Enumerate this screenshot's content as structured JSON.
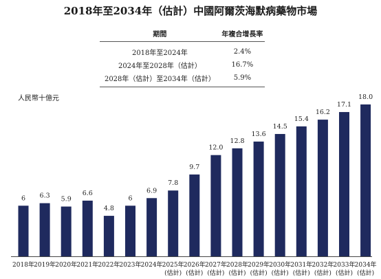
{
  "title": "2018年至2034年（估計）中國阿爾茨海默病藥物市場",
  "cagr_table": {
    "headers": [
      "期間",
      "年複合增長率"
    ],
    "rows": [
      [
        "2018年至2024年",
        "2.4%"
      ],
      [
        "2024年至2028年（估計）",
        "16.7%"
      ],
      [
        "2028年（估計）至2034年（估計）",
        "5.9%"
      ]
    ]
  },
  "chart_data": {
    "type": "bar",
    "title": "2018年至2034年（估計）中國阿爾茨海默病藥物市場",
    "ylabel": "人民幣十億元",
    "xlabel": "",
    "categories": [
      "2018年",
      "2019年",
      "2020年",
      "2021年",
      "2022年",
      "2023年",
      "2024年",
      "2025年\n(估計)",
      "2026年\n(估計)",
      "2027年\n(估計)",
      "2028年\n(估計)",
      "2029年\n(估計)",
      "2030年\n(估計)",
      "2031年\n(估計)",
      "2032年\n(估計)",
      "2033年\n(估計)",
      "2034年\n(估計)"
    ],
    "values": [
      6,
      6.3,
      5.9,
      6.6,
      4.8,
      6,
      6.9,
      7.8,
      9.7,
      12.0,
      12.8,
      13.6,
      14.5,
      15.4,
      16.2,
      17.1,
      18.0
    ],
    "value_labels": [
      "6",
      "6.3",
      "5.9",
      "6.6",
      "4.8",
      "6",
      "6.9",
      "7.8",
      "9.7",
      "12.0",
      "12.8",
      "13.6",
      "14.5",
      "15.4",
      "16.2",
      "17.1",
      "18.0"
    ],
    "ylim": [
      0,
      18.0
    ],
    "grid": false,
    "bar_color": "#1f2a5e"
  }
}
